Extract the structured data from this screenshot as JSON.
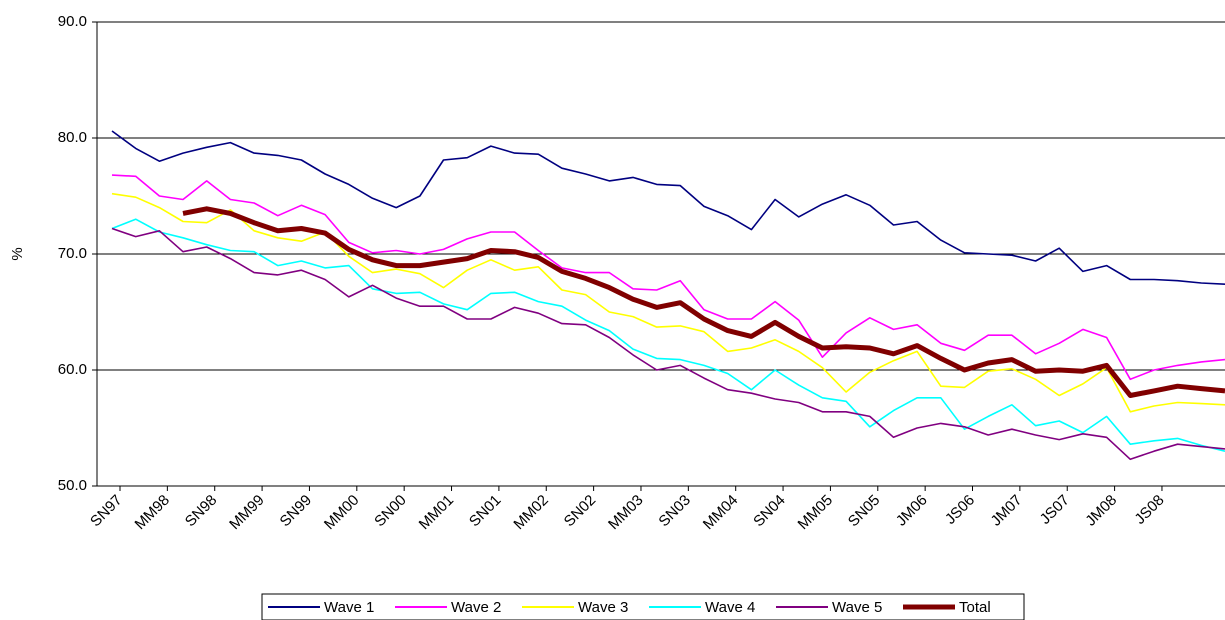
{
  "chart_data": {
    "type": "line",
    "ylabel": "%",
    "categories": [
      "SN97",
      null,
      "MM98",
      null,
      "SN98",
      null,
      "MM99",
      null,
      "SN99",
      null,
      "MM00",
      null,
      "SN00",
      null,
      "MM01",
      null,
      "SN01",
      null,
      "MM02",
      null,
      "SN02",
      null,
      "MM03",
      null,
      "SN03",
      null,
      "MM04",
      null,
      "SN04",
      null,
      "MM05",
      null,
      "SN05",
      null,
      "JM06",
      null,
      "JS06",
      null,
      "JM07",
      null,
      "JS07",
      null,
      "JM08",
      null,
      "JS08",
      null,
      null,
      null
    ],
    "ylim": [
      50,
      90
    ],
    "yticks": [
      {
        "value": 50,
        "label": "50.0"
      },
      {
        "value": 60,
        "label": "60.0"
      },
      {
        "value": 70,
        "label": "70.0"
      },
      {
        "value": 80,
        "label": "80.0"
      },
      {
        "value": 90,
        "label": "90.0"
      }
    ],
    "grid": true,
    "legend": "bottom",
    "series": [
      {
        "name": "Wave 1",
        "color": "#000080",
        "values": [
          80.6,
          79.1,
          78.0,
          78.7,
          79.2,
          79.6,
          78.7,
          78.5,
          78.1,
          76.9,
          76.0,
          74.8,
          74.0,
          75.0,
          78.1,
          78.3,
          79.3,
          78.7,
          78.6,
          77.4,
          76.9,
          76.3,
          76.6,
          76.0,
          75.9,
          74.1,
          73.3,
          72.1,
          74.7,
          73.2,
          74.3,
          75.1,
          74.2,
          72.5,
          72.8,
          71.2,
          70.1,
          70.0,
          69.9,
          69.4,
          70.5,
          68.5,
          69.0,
          67.8,
          67.8,
          67.7,
          67.5,
          67.4
        ]
      },
      {
        "name": "Wave 2",
        "color": "#ff00ff",
        "values": [
          76.8,
          76.7,
          75.0,
          74.7,
          76.3,
          74.7,
          74.4,
          73.3,
          74.2,
          73.4,
          71.0,
          70.1,
          70.3,
          70.0,
          70.4,
          71.3,
          71.9,
          71.9,
          70.3,
          68.8,
          68.4,
          68.4,
          67.0,
          66.9,
          67.7,
          65.2,
          64.4,
          64.4,
          65.9,
          64.3,
          61.1,
          63.2,
          64.5,
          63.5,
          63.9,
          62.3,
          61.7,
          63.0,
          63.0,
          61.4,
          62.3,
          63.5,
          62.8,
          59.2,
          60.0,
          60.4,
          60.7,
          60.9
        ]
      },
      {
        "name": "Wave 3",
        "color": "#ffff00",
        "values": [
          75.2,
          74.9,
          74.0,
          72.8,
          72.7,
          73.8,
          72.0,
          71.4,
          71.1,
          71.9,
          69.8,
          68.4,
          68.7,
          68.3,
          67.1,
          68.6,
          69.5,
          68.6,
          68.9,
          66.9,
          66.5,
          65.0,
          64.6,
          63.7,
          63.8,
          63.3,
          61.6,
          61.9,
          62.6,
          61.6,
          60.2,
          58.1,
          59.8,
          60.8,
          61.6,
          58.6,
          58.5,
          59.9,
          60.1,
          59.2,
          57.8,
          58.8,
          60.2,
          56.4,
          56.9,
          57.2,
          57.1,
          57.0
        ]
      },
      {
        "name": "Wave 4",
        "color": "#00ffff",
        "values": [
          72.2,
          73.0,
          71.9,
          71.4,
          70.8,
          70.3,
          70.2,
          69.0,
          69.4,
          68.8,
          69.0,
          67.0,
          66.6,
          66.7,
          65.7,
          65.2,
          66.6,
          66.7,
          65.9,
          65.5,
          64.3,
          63.4,
          61.8,
          61.0,
          60.9,
          60.4,
          59.7,
          58.3,
          60.0,
          58.7,
          57.6,
          57.3,
          55.1,
          56.5,
          57.6,
          57.6,
          54.9,
          56.0,
          57.0,
          55.2,
          55.6,
          54.6,
          56.0,
          53.6,
          53.9,
          54.1,
          53.5,
          53.0
        ]
      },
      {
        "name": "Wave 5",
        "color": "#800080",
        "values": [
          72.2,
          71.5,
          72.0,
          70.2,
          70.6,
          69.6,
          68.4,
          68.2,
          68.6,
          67.8,
          66.3,
          67.3,
          66.2,
          65.5,
          65.5,
          64.4,
          64.4,
          65.4,
          64.9,
          64.0,
          63.9,
          62.8,
          61.3,
          60.0,
          60.4,
          59.3,
          58.3,
          58.0,
          57.5,
          57.2,
          56.4,
          56.4,
          56.0,
          54.2,
          55.0,
          55.4,
          55.1,
          54.4,
          54.9,
          54.4,
          54.0,
          54.5,
          54.2,
          52.3,
          53.0,
          53.6,
          53.4,
          53.2
        ]
      },
      {
        "name": "Total",
        "color": "#800000",
        "width": 5,
        "values": [
          null,
          null,
          null,
          73.5,
          73.9,
          73.5,
          72.7,
          72.0,
          72.2,
          71.8,
          70.4,
          69.5,
          69.0,
          69.0,
          69.3,
          69.6,
          70.3,
          70.2,
          69.7,
          68.5,
          67.9,
          67.1,
          66.1,
          65.4,
          65.8,
          64.4,
          63.4,
          62.9,
          64.1,
          62.9,
          61.9,
          62.0,
          61.9,
          61.4,
          62.1,
          61.0,
          60.0,
          60.6,
          60.9,
          59.9,
          60.0,
          59.9,
          60.4,
          57.8,
          58.2,
          58.6,
          58.4,
          58.2
        ]
      }
    ]
  }
}
